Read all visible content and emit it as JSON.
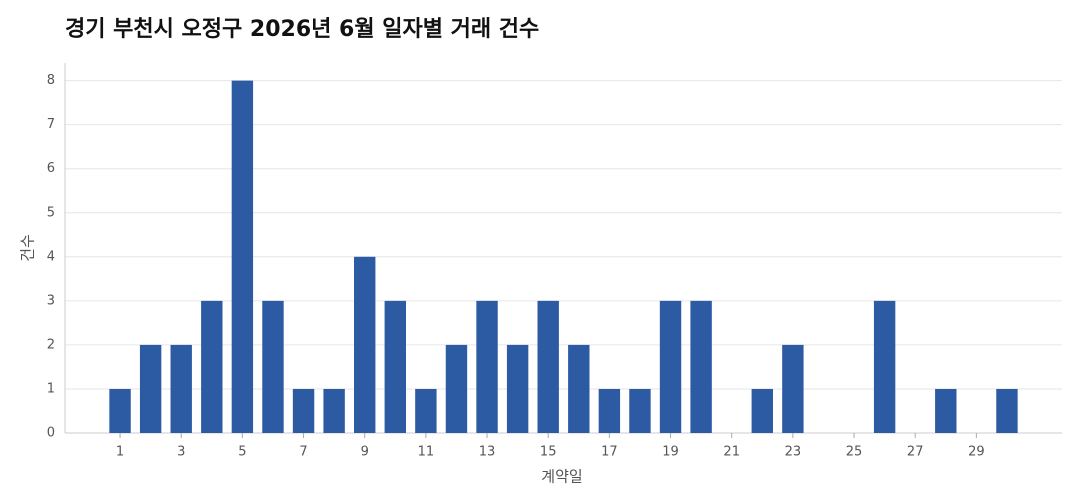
{
  "chart_data": {
    "type": "bar",
    "title": "경기 부천시 오정구 2026년 6월 일자별 거래 건수",
    "x_label": "계약일",
    "y_label": "건수",
    "x": [
      1,
      2,
      3,
      4,
      5,
      6,
      7,
      8,
      9,
      10,
      11,
      12,
      13,
      14,
      15,
      16,
      17,
      18,
      19,
      20,
      21,
      22,
      23,
      24,
      25,
      26,
      27,
      28,
      29,
      30
    ],
    "values": [
      1,
      2,
      2,
      3,
      8,
      3,
      1,
      1,
      4,
      3,
      1,
      2,
      3,
      2,
      3,
      2,
      1,
      1,
      3,
      3,
      0,
      1,
      2,
      0,
      0,
      3,
      0,
      1,
      0,
      1
    ],
    "color": "#2d5ba3",
    "xlim": [
      -0.8,
      31.8
    ],
    "xticks": [
      1,
      3,
      5,
      7,
      9,
      11,
      13,
      15,
      17,
      19,
      21,
      23,
      25,
      27,
      29
    ],
    "ylim": [
      0,
      8.4
    ],
    "yticks": [
      0,
      1,
      2,
      3,
      4,
      5,
      6,
      7,
      8
    ],
    "grid": true
  }
}
